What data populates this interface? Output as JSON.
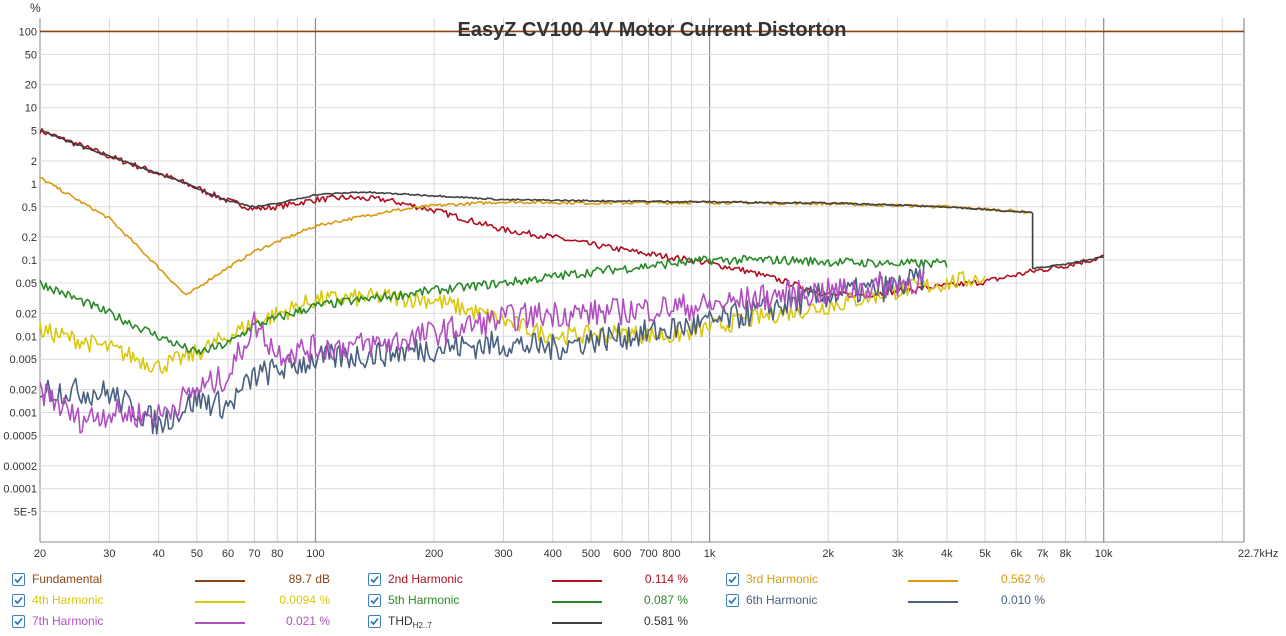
{
  "chart_data": {
    "type": "line",
    "title": "EasyZ CV100 4V Motor Current Distorton",
    "y_unit_label": "%",
    "x_scale": "log",
    "y_scale": "log",
    "xlim": [
      20,
      22700
    ],
    "ylim": [
      2e-05,
      150
    ],
    "x_ticks": [
      {
        "v": 20,
        "label": "20"
      },
      {
        "v": 30,
        "label": "30"
      },
      {
        "v": 40,
        "label": "40"
      },
      {
        "v": 50,
        "label": "50"
      },
      {
        "v": 60,
        "label": "60"
      },
      {
        "v": 70,
        "label": "70"
      },
      {
        "v": 80,
        "label": "80"
      },
      {
        "v": 100,
        "label": "100"
      },
      {
        "v": 200,
        "label": "200"
      },
      {
        "v": 300,
        "label": "300"
      },
      {
        "v": 400,
        "label": "400"
      },
      {
        "v": 500,
        "label": "500"
      },
      {
        "v": 600,
        "label": "600"
      },
      {
        "v": 700,
        "label": "700"
      },
      {
        "v": 800,
        "label": "800"
      },
      {
        "v": 1000,
        "label": "1k"
      },
      {
        "v": 2000,
        "label": "2k"
      },
      {
        "v": 3000,
        "label": "3k"
      },
      {
        "v": 4000,
        "label": "4k"
      },
      {
        "v": 5000,
        "label": "5k"
      },
      {
        "v": 6000,
        "label": "6k"
      },
      {
        "v": 7000,
        "label": "7k"
      },
      {
        "v": 8000,
        "label": "8k"
      },
      {
        "v": 10000,
        "label": "10k"
      },
      {
        "v": 22700,
        "label": "22.7kHz"
      }
    ],
    "y_ticks": [
      {
        "v": 100,
        "label": "100"
      },
      {
        "v": 50,
        "label": "50"
      },
      {
        "v": 20,
        "label": "20"
      },
      {
        "v": 10,
        "label": "10"
      },
      {
        "v": 5,
        "label": "5"
      },
      {
        "v": 2,
        "label": "2"
      },
      {
        "v": 1,
        "label": "1"
      },
      {
        "v": 0.5,
        "label": "0.5"
      },
      {
        "v": 0.2,
        "label": "0.2"
      },
      {
        "v": 0.1,
        "label": "0.1"
      },
      {
        "v": 0.05,
        "label": "0.05"
      },
      {
        "v": 0.02,
        "label": "0.02"
      },
      {
        "v": 0.01,
        "label": "0.01"
      },
      {
        "v": 0.005,
        "label": "0.005"
      },
      {
        "v": 0.002,
        "label": "0.002"
      },
      {
        "v": 0.001,
        "label": "0.001"
      },
      {
        "v": 0.0005,
        "label": "0.0005"
      },
      {
        "v": 0.0002,
        "label": "0.0002"
      },
      {
        "v": 0.0001,
        "label": "0.0001"
      },
      {
        "v": 5e-05,
        "label": "5E-5"
      }
    ],
    "grid": true,
    "legend_position": "bottom",
    "series": [
      {
        "name": "Fundamental",
        "legend_value": "89.7 dB",
        "color": "#8b4513",
        "noise": 0,
        "points": [
          [
            20,
            100
          ],
          [
            22700,
            100
          ]
        ]
      },
      {
        "name": "2nd Harmonic",
        "legend_value": "0.114 %",
        "color": "#b01020",
        "noise": 0.04,
        "points": [
          [
            20,
            5
          ],
          [
            30,
            2.3
          ],
          [
            45,
            1.1
          ],
          [
            60,
            0.6
          ],
          [
            70,
            0.47
          ],
          [
            80,
            0.5
          ],
          [
            100,
            0.62
          ],
          [
            120,
            0.66
          ],
          [
            150,
            0.62
          ],
          [
            200,
            0.45
          ],
          [
            300,
            0.25
          ],
          [
            400,
            0.2
          ],
          [
            500,
            0.16
          ],
          [
            700,
            0.12
          ],
          [
            900,
            0.1
          ],
          [
            1200,
            0.075
          ],
          [
            1500,
            0.055
          ],
          [
            2000,
            0.035
          ],
          [
            2500,
            0.035
          ],
          [
            3500,
            0.043
          ],
          [
            5000,
            0.052
          ],
          [
            6500,
            0.07
          ],
          [
            8000,
            0.085
          ],
          [
            10000,
            0.11
          ]
        ]
      },
      {
        "name": "3rd Harmonic",
        "legend_value": "0.562 %",
        "color": "#d89a10",
        "noise": 0.02,
        "points": [
          [
            20,
            1.2
          ],
          [
            30,
            0.35
          ],
          [
            40,
            0.08
          ],
          [
            47,
            0.034
          ],
          [
            55,
            0.06
          ],
          [
            70,
            0.13
          ],
          [
            100,
            0.28
          ],
          [
            150,
            0.43
          ],
          [
            200,
            0.52
          ],
          [
            300,
            0.58
          ],
          [
            500,
            0.56
          ],
          [
            1000,
            0.57
          ],
          [
            2000,
            0.55
          ],
          [
            4000,
            0.5
          ],
          [
            6000,
            0.44
          ],
          [
            6500,
            0.42
          ]
        ]
      },
      {
        "name": "4th Harmonic",
        "legend_value": "0.0094 %",
        "color": "#d8c810",
        "noise": 0.12,
        "points": [
          [
            20,
            0.012
          ],
          [
            30,
            0.007
          ],
          [
            40,
            0.004
          ],
          [
            50,
            0.006
          ],
          [
            60,
            0.01
          ],
          [
            70,
            0.015
          ],
          [
            100,
            0.03
          ],
          [
            150,
            0.033
          ],
          [
            200,
            0.03
          ],
          [
            300,
            0.016
          ],
          [
            400,
            0.01
          ],
          [
            600,
            0.011
          ],
          [
            800,
            0.01
          ],
          [
            1000,
            0.013
          ],
          [
            1500,
            0.02
          ],
          [
            2000,
            0.025
          ],
          [
            3000,
            0.04
          ],
          [
            4000,
            0.05
          ],
          [
            5000,
            0.06
          ]
        ]
      },
      {
        "name": "5th Harmonic",
        "legend_value": "0.087 %",
        "color": "#2a8a2a",
        "noise": 0.06,
        "points": [
          [
            20,
            0.05
          ],
          [
            30,
            0.02
          ],
          [
            40,
            0.01
          ],
          [
            50,
            0.006
          ],
          [
            60,
            0.008
          ],
          [
            70,
            0.014
          ],
          [
            100,
            0.025
          ],
          [
            150,
            0.033
          ],
          [
            200,
            0.04
          ],
          [
            300,
            0.05
          ],
          [
            500,
            0.07
          ],
          [
            800,
            0.09
          ],
          [
            1000,
            0.1
          ],
          [
            1500,
            0.1
          ],
          [
            2000,
            0.095
          ],
          [
            3000,
            0.09
          ],
          [
            4000,
            0.09
          ]
        ]
      },
      {
        "name": "6th Harmonic",
        "legend_value": "0.010 %",
        "color": "#4a6080",
        "noise": 0.18,
        "points": [
          [
            20,
            0.002
          ],
          [
            30,
            0.0018
          ],
          [
            40,
            0.0007
          ],
          [
            50,
            0.0015
          ],
          [
            60,
            0.0012
          ],
          [
            70,
            0.003
          ],
          [
            100,
            0.005
          ],
          [
            150,
            0.006
          ],
          [
            200,
            0.007
          ],
          [
            300,
            0.008
          ],
          [
            400,
            0.007
          ],
          [
            500,
            0.009
          ],
          [
            700,
            0.011
          ],
          [
            1000,
            0.015
          ],
          [
            1500,
            0.025
          ],
          [
            2000,
            0.035
          ],
          [
            3000,
            0.045
          ],
          [
            3500,
            0.06
          ]
        ]
      },
      {
        "name": "7th Harmonic",
        "legend_value": "0.021 %",
        "color": "#b050c0",
        "noise": 0.18,
        "points": [
          [
            20,
            0.002
          ],
          [
            25,
            0.0008
          ],
          [
            30,
            0.001
          ],
          [
            40,
            0.0009
          ],
          [
            50,
            0.002
          ],
          [
            60,
            0.003
          ],
          [
            70,
            0.015
          ],
          [
            80,
            0.006
          ],
          [
            100,
            0.007
          ],
          [
            150,
            0.008
          ],
          [
            200,
            0.011
          ],
          [
            300,
            0.017
          ],
          [
            400,
            0.02
          ],
          [
            500,
            0.02
          ],
          [
            800,
            0.024
          ],
          [
            1000,
            0.025
          ],
          [
            1500,
            0.035
          ],
          [
            2000,
            0.038
          ],
          [
            3000,
            0.05
          ],
          [
            3500,
            0.055
          ]
        ]
      },
      {
        "name": "THD",
        "name_sub": "H2..7",
        "legend_value": "0.581 %",
        "color": "#404040",
        "noise": 0.01,
        "points": [
          [
            20,
            5
          ],
          [
            30,
            2.3
          ],
          [
            45,
            1.1
          ],
          [
            60,
            0.6
          ],
          [
            70,
            0.5
          ],
          [
            80,
            0.55
          ],
          [
            100,
            0.72
          ],
          [
            130,
            0.78
          ],
          [
            200,
            0.7
          ],
          [
            300,
            0.62
          ],
          [
            500,
            0.6
          ],
          [
            1000,
            0.58
          ],
          [
            2000,
            0.56
          ],
          [
            4000,
            0.5
          ],
          [
            6000,
            0.43
          ],
          [
            6600,
            0.42
          ],
          [
            6600,
            0.078
          ],
          [
            8000,
            0.088
          ],
          [
            10000,
            0.11
          ]
        ]
      }
    ]
  }
}
